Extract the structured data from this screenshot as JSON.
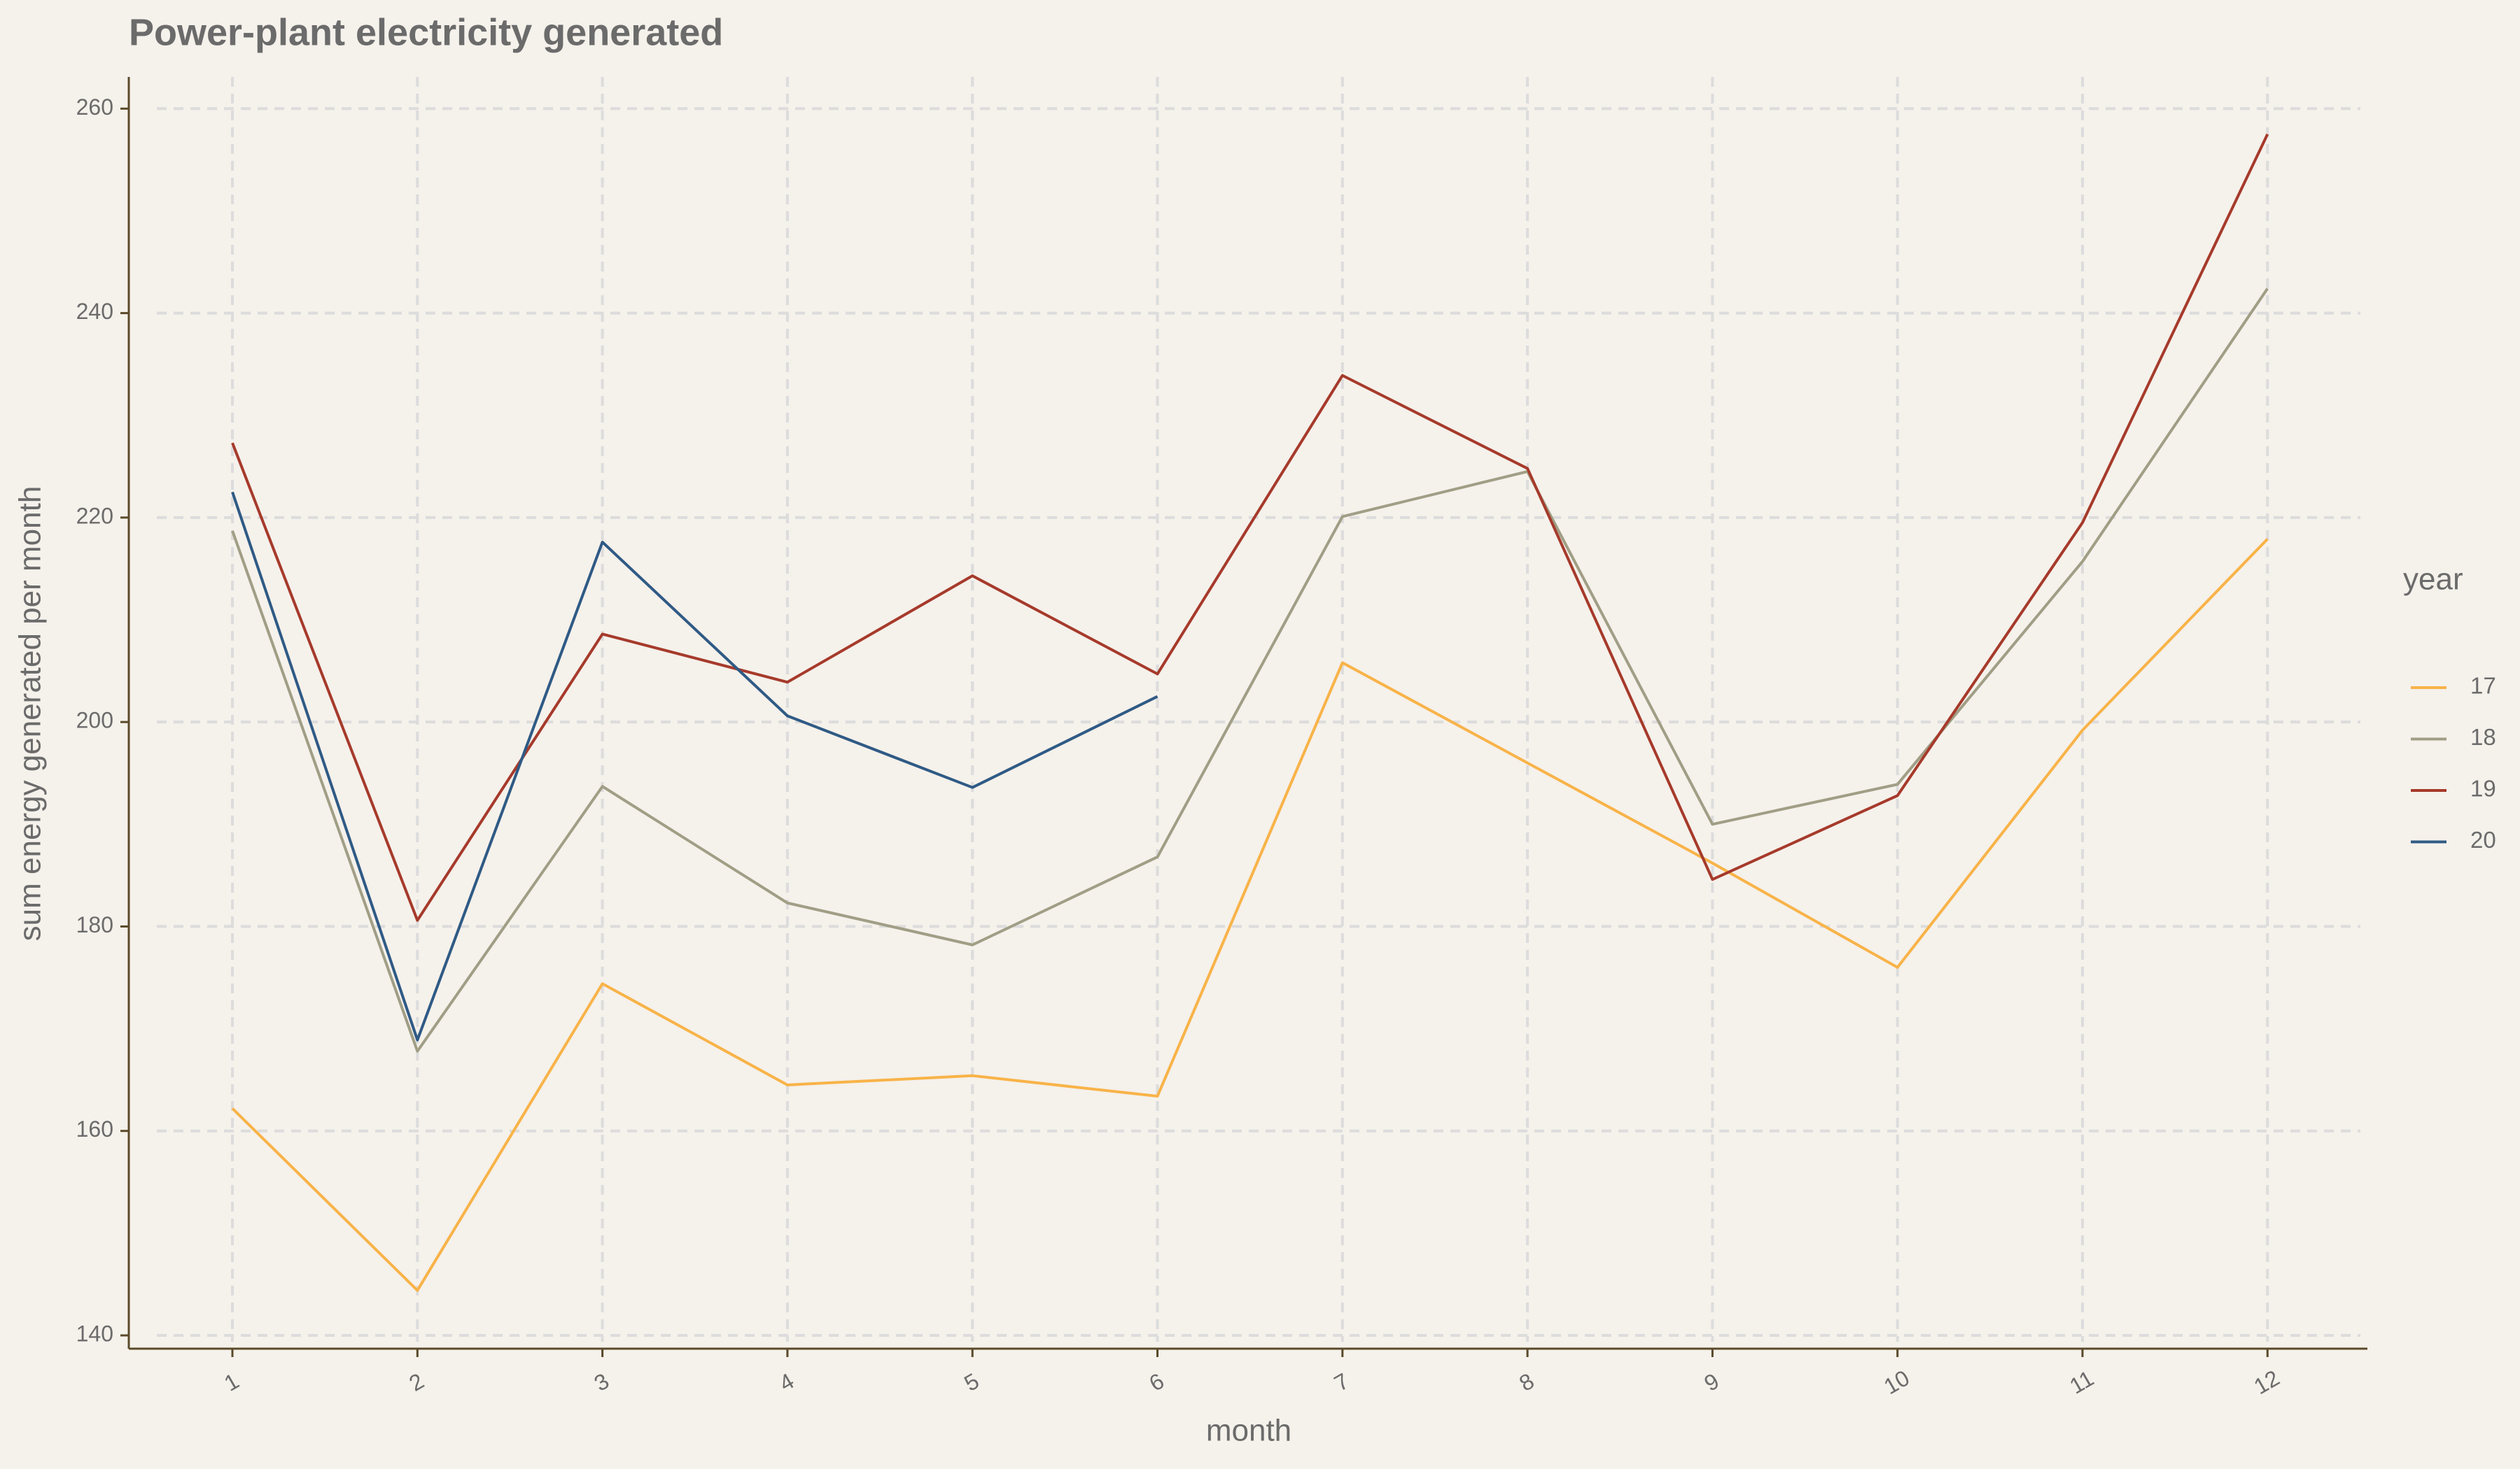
{
  "chart_data": {
    "type": "line",
    "title": "Power-plant electricity generated",
    "x_label": "month",
    "y_label": "sum energy generated per month",
    "legend_title": "year",
    "legend_position": "right",
    "grid": true,
    "x": [
      1,
      2,
      3,
      4,
      5,
      6,
      7,
      8,
      9,
      10,
      11,
      12
    ],
    "xlim": [
      0.44,
      12.54
    ],
    "xticks": [
      1,
      2,
      3,
      4,
      5,
      6,
      7,
      8,
      9,
      10,
      11,
      12
    ],
    "ylim": [
      138.7,
      263.1
    ],
    "yticks": [
      140,
      160,
      180,
      200,
      220,
      240,
      260
    ],
    "series": [
      {
        "name": "17",
        "color": "#f8b348",
        "values": [
          162.2,
          144.4,
          174.4,
          164.5,
          165.4,
          163.4,
          205.8,
          196,
          186.2,
          176,
          199.2,
          217.9
        ]
      },
      {
        "name": "18",
        "color": "#a09e85",
        "values": [
          218.7,
          167.8,
          193.7,
          182.3,
          178.2,
          186.8,
          220.1,
          224.5,
          190,
          193.9,
          215.7,
          242.4
        ]
      },
      {
        "name": "19",
        "color": "#a63a2b",
        "values": [
          227.3,
          180.6,
          208.6,
          203.9,
          214.3,
          204.7,
          233.9,
          224.8,
          184.6,
          192.8,
          219.5,
          257.5
        ]
      },
      {
        "name": "20",
        "color": "#2f5a85",
        "values": [
          222.5,
          168.9,
          217.6,
          200.6,
          193.6,
          202.5,
          null,
          null,
          null,
          null,
          null,
          null
        ]
      }
    ]
  }
}
